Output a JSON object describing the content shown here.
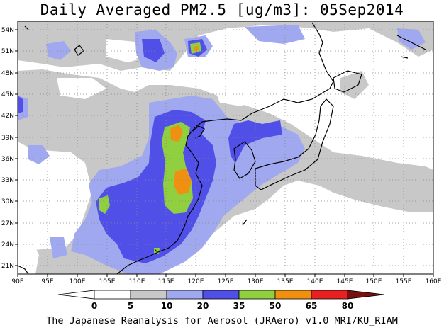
{
  "title": "Daily Averaged PM2.5 [ug/m3]: 05Sep2014",
  "credit": "The Japanese Reanalysis for Aerosol (JRAero) v1.0 MRI/KU_RIAM",
  "map": {
    "lon_range": [
      90,
      160
    ],
    "lat_range": [
      19.5,
      55
    ],
    "x_ticks": [
      "90E",
      "95E",
      "100E",
      "105E",
      "110E",
      "115E",
      "120E",
      "125E",
      "130E",
      "135E",
      "140E",
      "145E",
      "150E",
      "155E",
      "160E"
    ],
    "y_ticks": [
      "21N",
      "24N",
      "27N",
      "30N",
      "33N",
      "36N",
      "39N",
      "42N",
      "45N",
      "48N",
      "51N",
      "54N"
    ],
    "grid": "dotted"
  },
  "legend": {
    "labels": [
      "0",
      "5",
      "10",
      "20",
      "35",
      "50",
      "65",
      "80"
    ],
    "colors": [
      "#ffffff",
      "#c8c8c8",
      "#a0a8f0",
      "#5050e8",
      "#90d040",
      "#f09010",
      "#e82020",
      "#781010"
    ],
    "units": "ug/m3"
  }
}
